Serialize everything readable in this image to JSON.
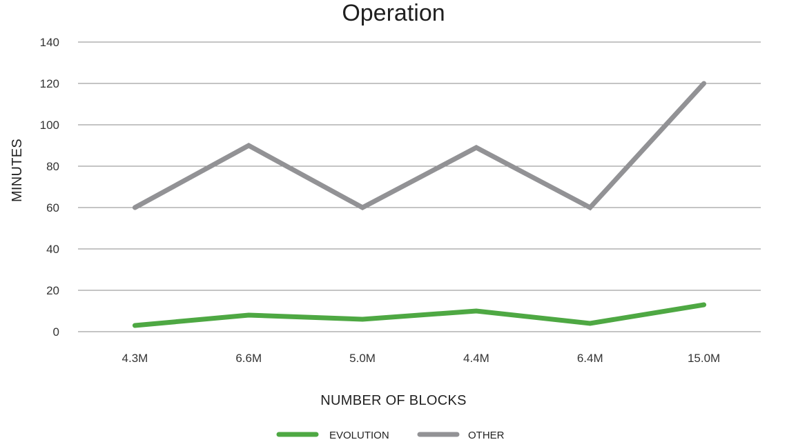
{
  "chart_data": {
    "type": "line",
    "title": "Operation",
    "xlabel": "NUMBER OF BLOCKS",
    "ylabel": "MINUTES",
    "categories": [
      "4.3M",
      "6.6M",
      "5.0M",
      "4.4M",
      "6.4M",
      "15.0M"
    ],
    "ylim": [
      0,
      140
    ],
    "yticks": [
      0,
      20,
      40,
      60,
      80,
      100,
      120,
      140
    ],
    "grid": true,
    "legend_position": "bottom",
    "series": [
      {
        "name": "EVOLUTION",
        "color": "#4ea843",
        "values": [
          3,
          8,
          6,
          10,
          4,
          13
        ]
      },
      {
        "name": "OTHER",
        "color": "#929295",
        "values": [
          60,
          90,
          60,
          89,
          60,
          120
        ]
      }
    ]
  }
}
